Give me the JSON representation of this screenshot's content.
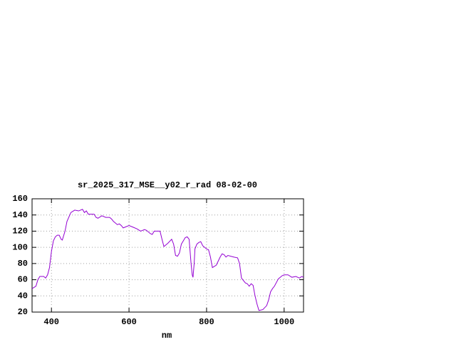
{
  "chart_data": {
    "type": "line",
    "title": "sr_2025_317_MSE__y02_r_rad 08-02-00",
    "x_label": "nm",
    "xlim": [
      350,
      1050
    ],
    "xticks": [
      400,
      600,
      800,
      1000
    ],
    "ylim": [
      20,
      160
    ],
    "yticks": [
      20,
      40,
      60,
      80,
      100,
      120,
      140,
      160
    ],
    "grid": true,
    "series": [
      {
        "color": "#9400d3",
        "x": [
          350,
          360,
          365,
          370,
          380,
          385,
          390,
          395,
          400,
          405,
          410,
          415,
          420,
          425,
          428,
          435,
          440,
          450,
          460,
          470,
          480,
          485,
          490,
          495,
          510,
          515,
          520,
          530,
          540,
          550,
          555,
          560,
          570,
          575,
          580,
          585,
          590,
          600,
          610,
          620,
          630,
          640,
          645,
          655,
          660,
          665,
          680,
          685,
          690,
          700,
          710,
          715,
          720,
          725,
          730,
          735,
          745,
          750,
          755,
          760,
          763,
          765,
          768,
          770,
          775,
          780,
          785,
          790,
          800,
          805,
          810,
          815,
          825,
          835,
          840,
          845,
          850,
          855,
          870,
          880,
          885,
          890,
          900,
          905,
          910,
          915,
          920,
          925,
          930,
          935,
          945,
          955,
          960,
          965,
          970,
          975,
          985,
          995,
          1000,
          1010,
          1020,
          1030,
          1040,
          1045,
          1050
        ],
        "values": [
          49,
          52,
          60,
          64,
          64,
          62,
          66,
          75,
          95,
          108,
          113,
          115,
          115,
          110,
          109,
          120,
          132,
          143,
          146,
          145,
          147,
          143,
          145,
          141,
          141,
          137,
          136,
          139,
          137,
          137,
          135,
          132,
          128,
          129,
          127,
          124,
          125,
          127,
          125,
          123,
          120,
          122,
          121,
          117,
          116,
          120,
          120,
          110,
          101,
          105,
          110,
          104,
          90,
          89,
          93,
          104,
          112,
          113,
          110,
          80,
          66,
          63,
          80,
          98,
          104,
          106,
          107,
          102,
          98,
          97,
          88,
          75,
          78,
          88,
          92,
          91,
          88,
          90,
          88,
          87,
          80,
          62,
          56,
          55,
          52,
          55,
          53,
          40,
          30,
          22,
          23,
          28,
          35,
          45,
          49,
          52,
          61,
          65,
          66,
          66,
          63,
          64,
          62,
          64,
          63
        ]
      }
    ]
  }
}
